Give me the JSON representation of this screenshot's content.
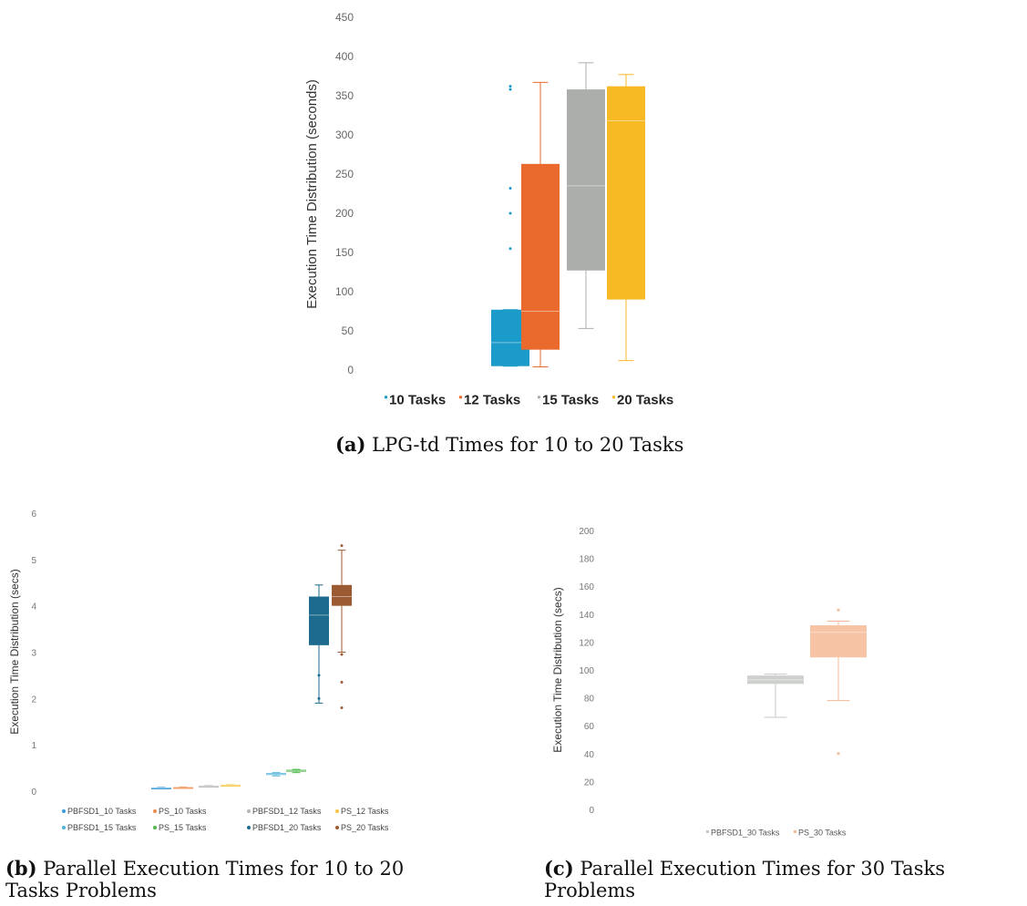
{
  "captions": {
    "a_tag": "(a)",
    "a_text": "LPG-td Times for 10 to 20 Tasks",
    "b_tag": "(b)",
    "b_text_1": "Parallel Execution Times for 10 to 20",
    "b_text_2": "Tasks Problems",
    "c_tag": "(c)",
    "c_text_1": "Parallel Execution Times for 30 Tasks",
    "c_text_2": "Problems"
  },
  "chart_data": [
    {
      "id": "a",
      "type": "box",
      "ylabel": "Execution Time Distribution (seconds)",
      "ylim": [
        0,
        450
      ],
      "yticks": [
        0,
        50,
        100,
        150,
        200,
        250,
        300,
        350,
        400,
        450
      ],
      "grid": false,
      "legend_position": "bottom",
      "series": [
        {
          "name": "10 Tasks",
          "color": "#1a9bc9",
          "min": 5,
          "q1": 5,
          "median": 35,
          "q3": 77,
          "max": 77,
          "outliers": [
            155,
            200,
            232,
            358,
            362
          ]
        },
        {
          "name": "12 Tasks",
          "color": "#e96a2c",
          "min": 4,
          "q1": 26,
          "median": 75,
          "q3": 263,
          "max": 367,
          "outliers": []
        },
        {
          "name": "15 Tasks",
          "color": "#abaeab",
          "min": 53,
          "q1": 127,
          "median": 235,
          "q3": 358,
          "max": 392,
          "outliers": []
        },
        {
          "name": "20 Tasks",
          "color": "#f7b924",
          "min": 12,
          "q1": 90,
          "median": 318,
          "q3": 362,
          "max": 377,
          "outliers": []
        }
      ]
    },
    {
      "id": "b",
      "type": "box",
      "ylabel": "Execution Time Distribution (secs)",
      "ylim": [
        0,
        6
      ],
      "yticks": [
        0,
        1,
        2,
        3,
        4,
        5,
        6
      ],
      "grid": false,
      "legend_position": "bottom",
      "series": [
        {
          "name": "PBFSD1_10 Tasks",
          "color": "#3a9ad9",
          "min": 0.06,
          "q1": 0.06,
          "median": 0.07,
          "q3": 0.08,
          "max": 0.08,
          "outliers": []
        },
        {
          "name": "PS_10 Tasks",
          "color": "#f08a4b",
          "min": 0.07,
          "q1": 0.07,
          "median": 0.08,
          "q3": 0.09,
          "max": 0.09,
          "outliers": []
        },
        {
          "name": "PBFSD1_12 Tasks",
          "color": "#b5b5b5",
          "min": 0.1,
          "q1": 0.1,
          "median": 0.11,
          "q3": 0.12,
          "max": 0.12,
          "outliers": []
        },
        {
          "name": "PS_12 Tasks",
          "color": "#f7c542",
          "min": 0.12,
          "q1": 0.12,
          "median": 0.13,
          "q3": 0.14,
          "max": 0.14,
          "outliers": []
        },
        {
          "name": "PBFSD1_15 Tasks",
          "color": "#4fb3d9",
          "min": 0.33,
          "q1": 0.35,
          "median": 0.37,
          "q3": 0.39,
          "max": 0.4,
          "outliers": []
        },
        {
          "name": "PS_15 Tasks",
          "color": "#4cb848",
          "min": 0.4,
          "q1": 0.42,
          "median": 0.44,
          "q3": 0.46,
          "max": 0.47,
          "outliers": []
        },
        {
          "name": "PBFSD1_20 Tasks",
          "color": "#1c6b8f",
          "min": 1.9,
          "q1": 3.15,
          "median": 3.8,
          "q3": 4.2,
          "max": 4.45,
          "outliers": [
            2.0,
            2.5
          ]
        },
        {
          "name": "PS_20 Tasks",
          "color": "#9c5a32",
          "min": 3.0,
          "q1": 4.0,
          "median": 4.2,
          "q3": 4.45,
          "max": 5.2,
          "outliers": [
            1.8,
            2.35,
            2.95,
            5.3
          ]
        }
      ]
    },
    {
      "id": "c",
      "type": "box",
      "ylabel": "Execution Time Distribution (secs)",
      "ylim": [
        0,
        200
      ],
      "yticks": [
        0,
        20,
        40,
        60,
        80,
        100,
        120,
        140,
        160,
        180,
        200
      ],
      "grid": false,
      "legend_position": "bottom",
      "series": [
        {
          "name": "PBFSD1_30 Tasks",
          "color": "#c6c8c5",
          "min": 66,
          "q1": 90,
          "median": 93,
          "q3": 96,
          "max": 97,
          "outliers": []
        },
        {
          "name": "PS_30 Tasks",
          "color": "#f5b995",
          "min": 78,
          "q1": 109,
          "median": 127,
          "q3": 132,
          "max": 135,
          "outliers": [
            40,
            143
          ]
        }
      ]
    }
  ]
}
